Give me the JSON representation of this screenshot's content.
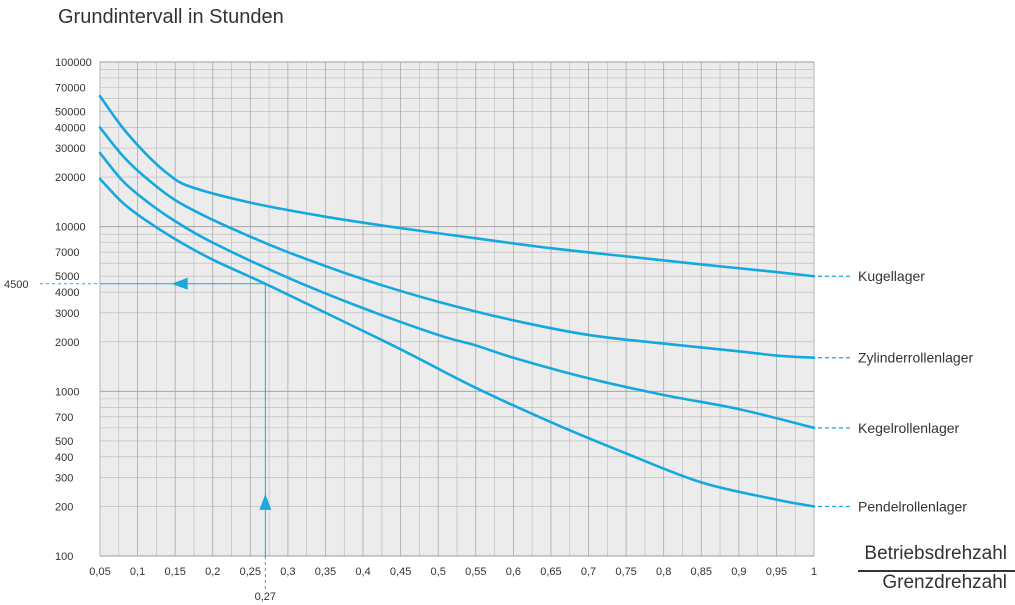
{
  "chart_data": {
    "type": "line",
    "title": "Grundintervall in Stunden",
    "xlabel_numerator": "Betriebsdrehzahl",
    "xlabel_denominator": "Grenzdrehzahl",
    "xlim": [
      0.05,
      1.0
    ],
    "ylim": [
      100,
      100000
    ],
    "y_scale": "log",
    "grid": true,
    "x_ticks": [
      {
        "v": 0.05,
        "label": "0,05"
      },
      {
        "v": 0.1,
        "label": "0,1"
      },
      {
        "v": 0.15,
        "label": "0,15"
      },
      {
        "v": 0.2,
        "label": "0,2"
      },
      {
        "v": 0.25,
        "label": "0,25"
      },
      {
        "v": 0.3,
        "label": "0,3"
      },
      {
        "v": 0.35,
        "label": "0,35"
      },
      {
        "v": 0.4,
        "label": "0,4"
      },
      {
        "v": 0.45,
        "label": "0,45"
      },
      {
        "v": 0.5,
        "label": "0,5"
      },
      {
        "v": 0.55,
        "label": "0,55"
      },
      {
        "v": 0.6,
        "label": "0,6"
      },
      {
        "v": 0.65,
        "label": "0,65"
      },
      {
        "v": 0.7,
        "label": "0,7"
      },
      {
        "v": 0.75,
        "label": "0,75"
      },
      {
        "v": 0.8,
        "label": "0,8"
      },
      {
        "v": 0.85,
        "label": "0,85"
      },
      {
        "v": 0.9,
        "label": "0,9"
      },
      {
        "v": 0.95,
        "label": "0,95"
      },
      {
        "v": 1.0,
        "label": "1"
      }
    ],
    "y_ticks": [
      {
        "v": 100000,
        "label": "100000"
      },
      {
        "v": 70000,
        "label": "70000"
      },
      {
        "v": 50000,
        "label": "50000"
      },
      {
        "v": 40000,
        "label": "40000"
      },
      {
        "v": 30000,
        "label": "30000"
      },
      {
        "v": 20000,
        "label": "20000"
      },
      {
        "v": 10000,
        "label": "10000"
      },
      {
        "v": 7000,
        "label": "7000"
      },
      {
        "v": 5000,
        "label": "5000"
      },
      {
        "v": 4000,
        "label": "4000"
      },
      {
        "v": 3000,
        "label": "3000"
      },
      {
        "v": 2000,
        "label": "2000"
      },
      {
        "v": 1000,
        "label": "1000"
      },
      {
        "v": 700,
        "label": "700"
      },
      {
        "v": 500,
        "label": "500"
      },
      {
        "v": 400,
        "label": "400"
      },
      {
        "v": 300,
        "label": "300"
      },
      {
        "v": 200,
        "label": "200"
      },
      {
        "v": 100,
        "label": "100"
      }
    ],
    "series": [
      {
        "name": "Kugellager",
        "x": [
          0.05,
          0.08,
          0.11,
          0.14,
          0.17,
          0.25,
          0.35,
          0.45,
          0.55,
          0.65,
          0.75,
          0.85,
          0.95,
          1.0
        ],
        "y": [
          62000,
          40000,
          28000,
          21000,
          17500,
          14000,
          11500,
          9800,
          8500,
          7400,
          6600,
          5900,
          5300,
          5000
        ]
      },
      {
        "name": "Zylinderrollenlager",
        "x": [
          0.05,
          0.08,
          0.11,
          0.15,
          0.2,
          0.25,
          0.3,
          0.4,
          0.5,
          0.6,
          0.7,
          0.8,
          0.9,
          0.95,
          1.0
        ],
        "y": [
          40000,
          27000,
          20000,
          14500,
          11000,
          8700,
          7000,
          4800,
          3500,
          2700,
          2200,
          1950,
          1750,
          1650,
          1600
        ]
      },
      {
        "name": "Kegelrollenlager",
        "x": [
          0.05,
          0.08,
          0.11,
          0.15,
          0.2,
          0.3,
          0.4,
          0.5,
          0.55,
          0.6,
          0.7,
          0.8,
          0.9,
          1.0
        ],
        "y": [
          28000,
          19000,
          14500,
          10800,
          8000,
          4900,
          3200,
          2200,
          1900,
          1600,
          1200,
          950,
          780,
          600
        ]
      },
      {
        "name": "Pendelrollenlager",
        "x": [
          0.05,
          0.08,
          0.11,
          0.15,
          0.2,
          0.27,
          0.35,
          0.45,
          0.55,
          0.65,
          0.75,
          0.85,
          0.95,
          1.0
        ],
        "y": [
          19500,
          14000,
          11000,
          8400,
          6300,
          4500,
          3000,
          1800,
          1050,
          650,
          420,
          280,
          220,
          200
        ]
      }
    ],
    "annotation": {
      "x": 0.27,
      "x_label": "0,27",
      "y": 4500,
      "y_label": "4500"
    },
    "colors": {
      "curve": "#15a8e0",
      "annotation": "#1ba9dd",
      "grid": "#b9b9b9",
      "plot_bg": "#ececec",
      "text": "#333333"
    }
  }
}
